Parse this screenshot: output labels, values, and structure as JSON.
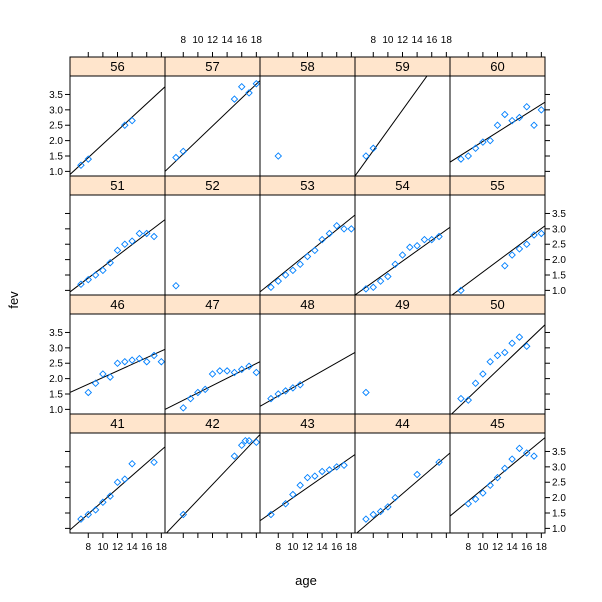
{
  "chart_data": {
    "type": "scatter",
    "layout": "lattice 5 columns x 4 rows, conditioned panels with per-panel regression line",
    "xlabel": "age",
    "ylabel": "fev",
    "xlim": [
      5.5,
      18.5
    ],
    "ylim": [
      0.85,
      4.1
    ],
    "x_ticks": [
      8,
      10,
      12,
      14,
      16,
      18
    ],
    "x_tick_labels": [
      "8",
      "10",
      "12",
      "14",
      "16",
      "18"
    ],
    "y_ticks": [
      1.0,
      1.5,
      2.0,
      2.5,
      3.0,
      3.5
    ],
    "y_tick_labels": [
      "1.0",
      "1.5",
      "2.0",
      "2.5",
      "3.0",
      "3.5"
    ],
    "strip_color": "#ffe5cc",
    "point_color": "#0080ff",
    "panels": [
      {
        "label": "41",
        "line": [
          [
            5.5,
            0.95
          ],
          [
            18.5,
            3.65
          ]
        ],
        "points": [
          [
            7,
            1.3
          ],
          [
            8,
            1.45
          ],
          [
            9,
            1.6
          ],
          [
            10,
            1.85
          ],
          [
            11,
            2.05
          ],
          [
            12,
            2.5
          ],
          [
            13,
            2.6
          ],
          [
            14,
            3.1
          ],
          [
            17,
            3.15
          ]
        ]
      },
      {
        "label": "42",
        "line": [
          [
            5.5,
            0.8
          ],
          [
            18.5,
            4.05
          ]
        ],
        "points": [
          [
            8,
            1.45
          ],
          [
            15,
            3.35
          ],
          [
            16,
            3.7
          ],
          [
            16.5,
            3.85
          ],
          [
            17,
            3.85
          ],
          [
            18,
            3.8
          ]
        ]
      },
      {
        "label": "43",
        "line": [
          [
            5.5,
            1.25
          ],
          [
            18.5,
            3.4
          ]
        ],
        "points": [
          [
            7,
            1.45
          ],
          [
            9,
            1.8
          ],
          [
            10,
            2.1
          ],
          [
            11,
            2.4
          ],
          [
            12,
            2.65
          ],
          [
            13,
            2.7
          ],
          [
            14,
            2.85
          ],
          [
            15,
            2.9
          ],
          [
            16,
            3.0
          ],
          [
            17,
            3.05
          ]
        ]
      },
      {
        "label": "44",
        "line": [
          [
            5.5,
            0.8
          ],
          [
            18.5,
            3.45
          ]
        ],
        "points": [
          [
            7,
            1.3
          ],
          [
            8,
            1.45
          ],
          [
            9,
            1.55
          ],
          [
            10,
            1.7
          ],
          [
            11,
            2.0
          ],
          [
            14,
            2.75
          ],
          [
            17,
            3.15
          ]
        ]
      },
      {
        "label": "45",
        "line": [
          [
            5.5,
            1.4
          ],
          [
            18.5,
            3.95
          ]
        ],
        "points": [
          [
            8,
            1.8
          ],
          [
            9,
            1.95
          ],
          [
            10,
            2.15
          ],
          [
            11,
            2.4
          ],
          [
            12,
            2.65
          ],
          [
            13,
            2.95
          ],
          [
            14,
            3.25
          ],
          [
            15,
            3.6
          ],
          [
            16,
            3.45
          ],
          [
            17,
            3.35
          ]
        ]
      },
      {
        "label": "46",
        "line": [
          [
            5.5,
            1.55
          ],
          [
            18.5,
            2.95
          ]
        ],
        "points": [
          [
            8,
            1.55
          ],
          [
            9,
            1.85
          ],
          [
            10,
            2.15
          ],
          [
            11,
            2.05
          ],
          [
            12,
            2.5
          ],
          [
            13,
            2.55
          ],
          [
            14,
            2.6
          ],
          [
            15,
            2.65
          ],
          [
            16,
            2.55
          ],
          [
            17,
            2.75
          ],
          [
            18,
            2.55
          ]
        ]
      },
      {
        "label": "47",
        "line": [
          [
            5.5,
            1.0
          ],
          [
            18.5,
            2.55
          ]
        ],
        "points": [
          [
            8,
            1.05
          ],
          [
            9,
            1.35
          ],
          [
            10,
            1.55
          ],
          [
            11,
            1.65
          ],
          [
            12,
            2.15
          ],
          [
            13,
            2.25
          ],
          [
            14,
            2.25
          ],
          [
            15,
            2.2
          ],
          [
            16,
            2.3
          ],
          [
            17,
            2.4
          ],
          [
            18,
            2.2
          ]
        ]
      },
      {
        "label": "48",
        "line": [
          [
            5.5,
            1.1
          ],
          [
            18.5,
            2.85
          ]
        ],
        "points": [
          [
            7,
            1.35
          ],
          [
            8,
            1.5
          ],
          [
            9,
            1.6
          ],
          [
            10,
            1.7
          ],
          [
            11,
            1.8
          ]
        ]
      },
      {
        "label": "49",
        "line": null,
        "points": [
          [
            7,
            1.55
          ]
        ]
      },
      {
        "label": "50",
        "line": [
          [
            5.5,
            0.8
          ],
          [
            18.5,
            3.75
          ]
        ],
        "points": [
          [
            7,
            1.35
          ],
          [
            8,
            1.3
          ],
          [
            9,
            1.85
          ],
          [
            10,
            2.15
          ],
          [
            11,
            2.55
          ],
          [
            12,
            2.75
          ],
          [
            13,
            2.85
          ],
          [
            14,
            3.15
          ],
          [
            15,
            3.35
          ],
          [
            16,
            3.05
          ]
        ]
      },
      {
        "label": "51",
        "line": [
          [
            5.5,
            0.95
          ],
          [
            18.5,
            3.3
          ]
        ],
        "points": [
          [
            7,
            1.2
          ],
          [
            8,
            1.35
          ],
          [
            9,
            1.5
          ],
          [
            10,
            1.65
          ],
          [
            11,
            1.9
          ],
          [
            12,
            2.3
          ],
          [
            13,
            2.5
          ],
          [
            14,
            2.6
          ],
          [
            15,
            2.85
          ],
          [
            16,
            2.85
          ],
          [
            17,
            2.75
          ]
        ]
      },
      {
        "label": "52",
        "line": null,
        "points": [
          [
            7,
            1.15
          ]
        ]
      },
      {
        "label": "53",
        "line": [
          [
            5.5,
            0.95
          ],
          [
            18.5,
            3.45
          ]
        ],
        "points": [
          [
            7,
            1.1
          ],
          [
            8,
            1.3
          ],
          [
            9,
            1.5
          ],
          [
            10,
            1.65
          ],
          [
            11,
            1.85
          ],
          [
            12,
            2.1
          ],
          [
            13,
            2.3
          ],
          [
            14,
            2.65
          ],
          [
            15,
            2.85
          ],
          [
            16,
            3.1
          ],
          [
            17,
            3.0
          ],
          [
            18,
            3.0
          ]
        ]
      },
      {
        "label": "54",
        "line": [
          [
            5.5,
            0.85
          ],
          [
            18.5,
            3.05
          ]
        ],
        "points": [
          [
            7,
            1.05
          ],
          [
            8,
            1.1
          ],
          [
            9,
            1.3
          ],
          [
            10,
            1.45
          ],
          [
            11,
            1.85
          ],
          [
            12,
            2.15
          ],
          [
            13,
            2.4
          ],
          [
            14,
            2.45
          ],
          [
            15,
            2.65
          ],
          [
            16,
            2.65
          ],
          [
            17,
            2.75
          ]
        ]
      },
      {
        "label": "55",
        "line": [
          [
            5.5,
            0.8
          ],
          [
            18.5,
            3.1
          ]
        ],
        "points": [
          [
            7,
            1.0
          ],
          [
            13,
            1.8
          ],
          [
            14,
            2.15
          ],
          [
            15,
            2.35
          ],
          [
            16,
            2.5
          ],
          [
            17,
            2.8
          ],
          [
            18,
            2.85
          ]
        ]
      },
      {
        "label": "56",
        "line": [
          [
            5.5,
            0.9
          ],
          [
            18.5,
            3.75
          ]
        ],
        "points": [
          [
            7,
            1.2
          ],
          [
            8,
            1.4
          ],
          [
            13,
            2.5
          ],
          [
            14,
            2.65
          ]
        ]
      },
      {
        "label": "57",
        "line": [
          [
            5.5,
            1.0
          ],
          [
            18.5,
            3.95
          ]
        ],
        "points": [
          [
            7,
            1.45
          ],
          [
            8,
            1.65
          ],
          [
            15,
            3.35
          ],
          [
            16,
            3.75
          ],
          [
            17,
            3.55
          ],
          [
            18,
            3.85
          ]
        ]
      },
      {
        "label": "58",
        "line": null,
        "points": [
          [
            8,
            1.5
          ]
        ]
      },
      {
        "label": "59",
        "line": [
          [
            5.5,
            0.85
          ],
          [
            15.5,
            4.15
          ]
        ],
        "points": [
          [
            7,
            1.5
          ],
          [
            8,
            1.75
          ]
        ]
      },
      {
        "label": "60",
        "line": [
          [
            5.5,
            1.3
          ],
          [
            18.5,
            3.25
          ]
        ],
        "points": [
          [
            7,
            1.4
          ],
          [
            8,
            1.5
          ],
          [
            9,
            1.75
          ],
          [
            10,
            1.95
          ],
          [
            11,
            2.0
          ],
          [
            12,
            2.5
          ],
          [
            13,
            2.85
          ],
          [
            14,
            2.65
          ],
          [
            15,
            2.75
          ],
          [
            16,
            3.1
          ],
          [
            17,
            2.5
          ],
          [
            18,
            3.0
          ]
        ]
      }
    ]
  }
}
